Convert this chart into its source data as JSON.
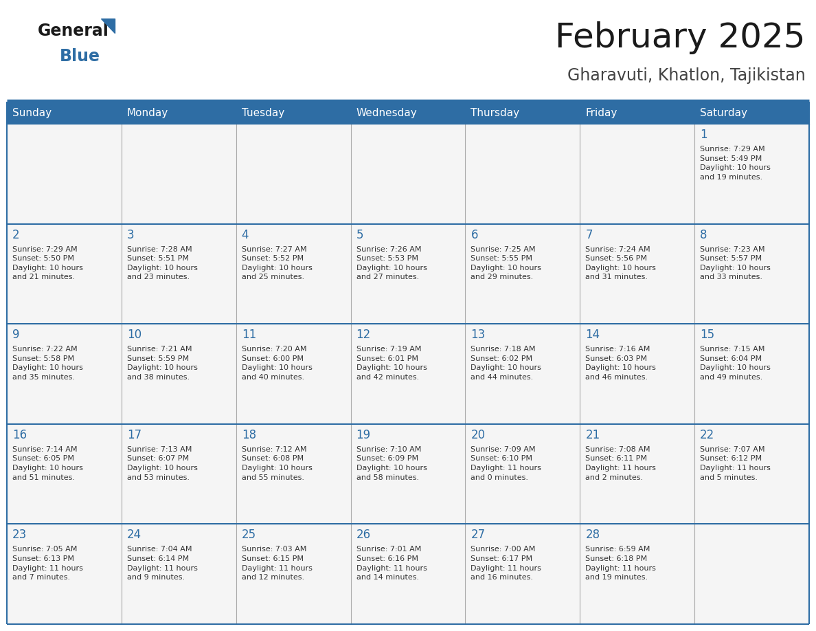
{
  "title": "February 2025",
  "subtitle": "Gharavuti, Khatlon, Tajikistan",
  "header_bg": "#2E6DA4",
  "header_text": "#FFFFFF",
  "cell_bg": "#F5F5F5",
  "text_color": "#333333",
  "day_num_color": "#2E6DA4",
  "border_color": "#2E6DA4",
  "vert_line_color": "#AAAAAA",
  "days_of_week": [
    "Sunday",
    "Monday",
    "Tuesday",
    "Wednesday",
    "Thursday",
    "Friday",
    "Saturday"
  ],
  "weeks": [
    [
      {
        "day": null,
        "info": null
      },
      {
        "day": null,
        "info": null
      },
      {
        "day": null,
        "info": null
      },
      {
        "day": null,
        "info": null
      },
      {
        "day": null,
        "info": null
      },
      {
        "day": null,
        "info": null
      },
      {
        "day": "1",
        "info": "Sunrise: 7:29 AM\nSunset: 5:49 PM\nDaylight: 10 hours\nand 19 minutes."
      }
    ],
    [
      {
        "day": "2",
        "info": "Sunrise: 7:29 AM\nSunset: 5:50 PM\nDaylight: 10 hours\nand 21 minutes."
      },
      {
        "day": "3",
        "info": "Sunrise: 7:28 AM\nSunset: 5:51 PM\nDaylight: 10 hours\nand 23 minutes."
      },
      {
        "day": "4",
        "info": "Sunrise: 7:27 AM\nSunset: 5:52 PM\nDaylight: 10 hours\nand 25 minutes."
      },
      {
        "day": "5",
        "info": "Sunrise: 7:26 AM\nSunset: 5:53 PM\nDaylight: 10 hours\nand 27 minutes."
      },
      {
        "day": "6",
        "info": "Sunrise: 7:25 AM\nSunset: 5:55 PM\nDaylight: 10 hours\nand 29 minutes."
      },
      {
        "day": "7",
        "info": "Sunrise: 7:24 AM\nSunset: 5:56 PM\nDaylight: 10 hours\nand 31 minutes."
      },
      {
        "day": "8",
        "info": "Sunrise: 7:23 AM\nSunset: 5:57 PM\nDaylight: 10 hours\nand 33 minutes."
      }
    ],
    [
      {
        "day": "9",
        "info": "Sunrise: 7:22 AM\nSunset: 5:58 PM\nDaylight: 10 hours\nand 35 minutes."
      },
      {
        "day": "10",
        "info": "Sunrise: 7:21 AM\nSunset: 5:59 PM\nDaylight: 10 hours\nand 38 minutes."
      },
      {
        "day": "11",
        "info": "Sunrise: 7:20 AM\nSunset: 6:00 PM\nDaylight: 10 hours\nand 40 minutes."
      },
      {
        "day": "12",
        "info": "Sunrise: 7:19 AM\nSunset: 6:01 PM\nDaylight: 10 hours\nand 42 minutes."
      },
      {
        "day": "13",
        "info": "Sunrise: 7:18 AM\nSunset: 6:02 PM\nDaylight: 10 hours\nand 44 minutes."
      },
      {
        "day": "14",
        "info": "Sunrise: 7:16 AM\nSunset: 6:03 PM\nDaylight: 10 hours\nand 46 minutes."
      },
      {
        "day": "15",
        "info": "Sunrise: 7:15 AM\nSunset: 6:04 PM\nDaylight: 10 hours\nand 49 minutes."
      }
    ],
    [
      {
        "day": "16",
        "info": "Sunrise: 7:14 AM\nSunset: 6:05 PM\nDaylight: 10 hours\nand 51 minutes."
      },
      {
        "day": "17",
        "info": "Sunrise: 7:13 AM\nSunset: 6:07 PM\nDaylight: 10 hours\nand 53 minutes."
      },
      {
        "day": "18",
        "info": "Sunrise: 7:12 AM\nSunset: 6:08 PM\nDaylight: 10 hours\nand 55 minutes."
      },
      {
        "day": "19",
        "info": "Sunrise: 7:10 AM\nSunset: 6:09 PM\nDaylight: 10 hours\nand 58 minutes."
      },
      {
        "day": "20",
        "info": "Sunrise: 7:09 AM\nSunset: 6:10 PM\nDaylight: 11 hours\nand 0 minutes."
      },
      {
        "day": "21",
        "info": "Sunrise: 7:08 AM\nSunset: 6:11 PM\nDaylight: 11 hours\nand 2 minutes."
      },
      {
        "day": "22",
        "info": "Sunrise: 7:07 AM\nSunset: 6:12 PM\nDaylight: 11 hours\nand 5 minutes."
      }
    ],
    [
      {
        "day": "23",
        "info": "Sunrise: 7:05 AM\nSunset: 6:13 PM\nDaylight: 11 hours\nand 7 minutes."
      },
      {
        "day": "24",
        "info": "Sunrise: 7:04 AM\nSunset: 6:14 PM\nDaylight: 11 hours\nand 9 minutes."
      },
      {
        "day": "25",
        "info": "Sunrise: 7:03 AM\nSunset: 6:15 PM\nDaylight: 11 hours\nand 12 minutes."
      },
      {
        "day": "26",
        "info": "Sunrise: 7:01 AM\nSunset: 6:16 PM\nDaylight: 11 hours\nand 14 minutes."
      },
      {
        "day": "27",
        "info": "Sunrise: 7:00 AM\nSunset: 6:17 PM\nDaylight: 11 hours\nand 16 minutes."
      },
      {
        "day": "28",
        "info": "Sunrise: 6:59 AM\nSunset: 6:18 PM\nDaylight: 11 hours\nand 19 minutes."
      },
      {
        "day": null,
        "info": null
      }
    ]
  ],
  "logo_general_color": "#1a1a1a",
  "logo_blue_color": "#2E6DA4",
  "logo_triangle_color": "#2E6DA4"
}
